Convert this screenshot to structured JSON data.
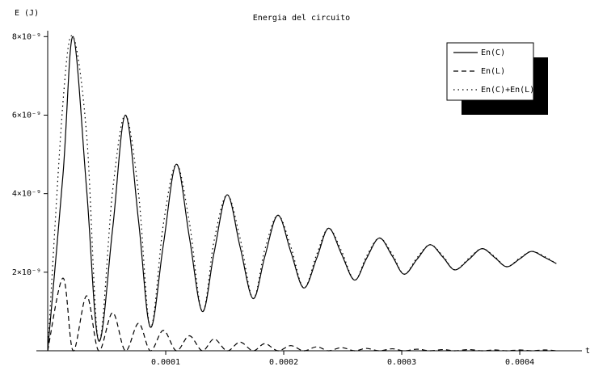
{
  "chart_data": {
    "type": "line",
    "title": "Energia del circuito",
    "y_label": "E (J)",
    "x_label": "t",
    "x": [
      0,
      1.3e-05,
      2.15e-05,
      3.3e-05,
      4.32e-05,
      5.5e-05,
      6.58e-05,
      7.7e-05,
      8.7e-05,
      9.8e-05,
      0.000109,
      0.00012,
      0.000131,
      0.000141,
      0.000152,
      0.000163,
      0.000174,
      0.000184,
      0.000195,
      0.000206,
      0.000217,
      0.000228,
      0.000238,
      0.000249,
      0.00026,
      0.00027,
      0.000281,
      0.000292,
      0.000302,
      0.000313,
      0.000324,
      0.000335,
      0.000345,
      0.000357,
      0.000368,
      0.000379,
      0.000389,
      0.0004,
      0.00041,
      0.000421,
      0.000431
    ],
    "series": [
      {
        "name": "En(C)",
        "color": "#000000",
        "dash": "solid",
        "values": [
          0,
          4.5e-09,
          8e-09,
          4.1e-09,
          2.5e-10,
          3.1e-09,
          6e-09,
          3.3e-09,
          6e-10,
          2.7e-09,
          4.75e-09,
          2.9e-09,
          1e-09,
          2.5e-09,
          3.97e-09,
          2.65e-09,
          1.33e-09,
          2.4e-09,
          3.45e-09,
          2.52e-09,
          1.6e-09,
          2.36e-09,
          3.12e-09,
          2.46e-09,
          1.8e-09,
          2.34e-09,
          2.87e-09,
          2.41e-09,
          1.95e-09,
          2.33e-09,
          2.7e-09,
          2.38e-09,
          2.06e-09,
          2.33e-09,
          2.6e-09,
          2.37e-09,
          2.14e-09,
          2.34e-09,
          2.53e-09,
          2.38e-09,
          2.22e-09
        ]
      },
      {
        "name": "En(L)",
        "color": "#000000",
        "dash": "dashed",
        "values": [
          0,
          1.85e-09,
          0,
          1.4e-09,
          0,
          9.7e-10,
          0,
          7e-10,
          0,
          5.2e-10,
          0,
          3.8e-10,
          0,
          3e-10,
          0,
          2.2e-10,
          0,
          1.8e-10,
          0,
          1.3e-10,
          0,
          1e-10,
          0,
          8e-11,
          0,
          6e-11,
          0,
          5e-11,
          0,
          4e-11,
          0,
          3e-11,
          0,
          3e-11,
          0,
          2e-11,
          0,
          2e-11,
          0,
          2e-11,
          0
        ]
      },
      {
        "name": "En(C)+En(L)",
        "color": "#000000",
        "dash": "dotted",
        "values": [
          0,
          6.35e-09,
          8e-09,
          5.5e-09,
          2.5e-10,
          4.07e-09,
          6e-09,
          4e-09,
          6e-10,
          3.22e-09,
          4.75e-09,
          3.28e-09,
          1e-09,
          2.8e-09,
          3.97e-09,
          2.87e-09,
          1.33e-09,
          2.58e-09,
          3.45e-09,
          2.65e-09,
          1.6e-09,
          2.46e-09,
          3.12e-09,
          2.54e-09,
          1.8e-09,
          2.4e-09,
          2.87e-09,
          2.46e-09,
          1.95e-09,
          2.37e-09,
          2.7e-09,
          2.41e-09,
          2.06e-09,
          2.36e-09,
          2.6e-09,
          2.39e-09,
          2.14e-09,
          2.36e-09,
          2.53e-09,
          2.4e-09,
          2.22e-09
        ]
      }
    ],
    "xlim": [
      -9.6e-06,
      0.0004527
    ],
    "ylim": [
      0,
      8.15e-09
    ],
    "xticks": [
      0.0001,
      0.0002,
      0.0003,
      0.0004
    ],
    "yticks": [
      {
        "value": 2e-09,
        "label": "2×10⁻⁹"
      },
      {
        "value": 4e-09,
        "label": "4×10⁻⁹"
      },
      {
        "value": 6e-09,
        "label": "6×10⁻⁹"
      },
      {
        "value": 8e-09,
        "label": "8×10⁻⁹"
      }
    ],
    "grid": false,
    "legend": "top-right"
  }
}
